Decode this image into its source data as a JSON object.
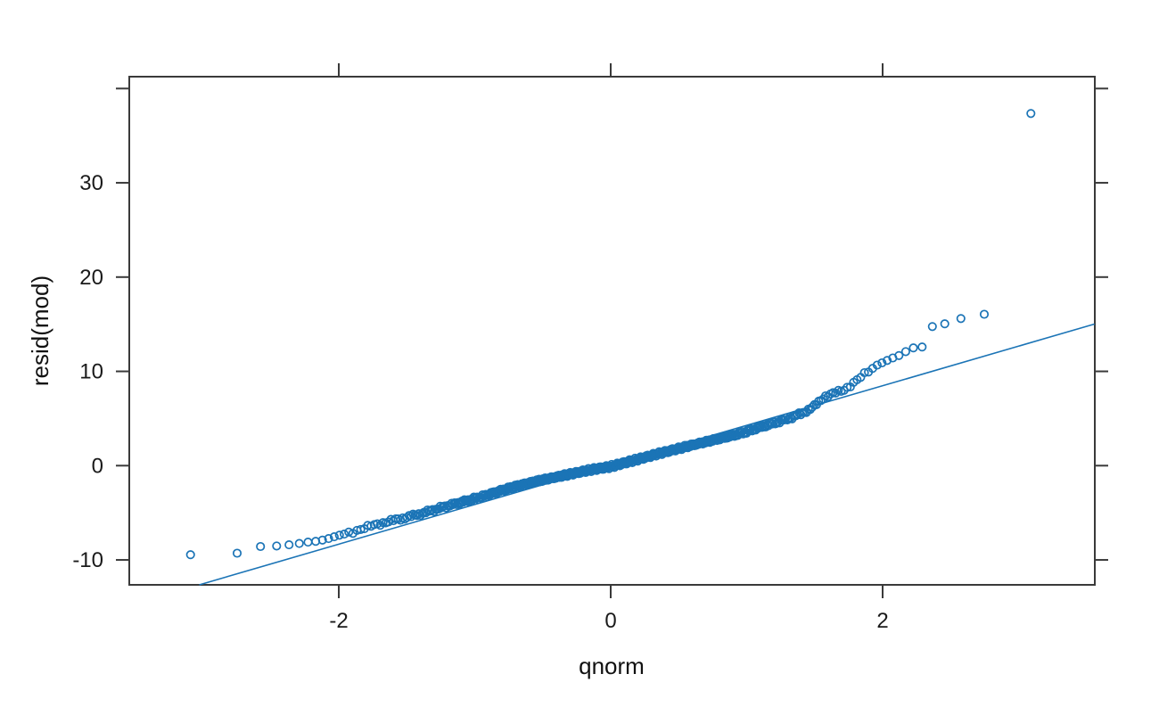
{
  "chart_data": {
    "type": "scatter",
    "title": "",
    "xlabel": "qnorm",
    "ylabel": "resid(mod)",
    "x_ticks": {
      "values": [
        -2,
        0,
        2
      ],
      "labels": [
        "-2",
        "0",
        "2"
      ]
    },
    "y_ticks": {
      "values": [
        40,
        30,
        20,
        10,
        0,
        -10
      ],
      "labels": [
        "",
        "30",
        "20",
        "10",
        "0",
        "-10"
      ]
    },
    "xlim": [
      -3.54,
      3.56
    ],
    "ylim": [
      -12.64,
      41.25
    ],
    "grid": false,
    "legend": null,
    "marker": "open-circle",
    "point_color": "#1b74b6",
    "line_color": "#1b74b6",
    "axis_color": "#3a3a3a",
    "text_color": "#1a1a1a",
    "n_points": 500,
    "sampling": "theoretical quantiles x[i] = qnorm((i-0.5)/500), i = 1..500",
    "reference_line": {
      "x1": -3.026,
      "y1": -12.64,
      "x2": 3.558,
      "y2": 15.02,
      "equation": "y = 4.2x + 0.07"
    },
    "quantile_curve": [
      [
        -3.09,
        -9.45
      ],
      [
        -2.75,
        -9.3
      ],
      [
        -2.6,
        -8.58
      ],
      [
        -2.49,
        -8.55
      ],
      [
        -2.41,
        -8.48
      ],
      [
        -2.31,
        -8.3
      ],
      [
        -2.22,
        -8.1
      ],
      [
        -2.15,
        -8.0
      ],
      [
        -2.09,
        -7.8
      ],
      [
        -2.0,
        -7.4
      ],
      [
        -1.93,
        -7.1
      ],
      [
        -1.87,
        -6.9
      ],
      [
        -1.8,
        -6.6
      ],
      [
        -1.74,
        -6.3
      ],
      [
        -1.67,
        -6.05
      ],
      [
        -1.55,
        -5.65
      ],
      [
        -1.45,
        -5.3
      ],
      [
        -1.35,
        -4.9
      ],
      [
        -1.21,
        -4.3
      ],
      [
        -1.08,
        -3.8
      ],
      [
        -0.95,
        -3.3
      ],
      [
        -0.82,
        -2.7
      ],
      [
        -0.7,
        -2.2
      ],
      [
        -0.56,
        -1.7
      ],
      [
        -0.43,
        -1.3
      ],
      [
        -0.3,
        -0.9
      ],
      [
        -0.15,
        -0.45
      ],
      [
        0.0,
        -0.1
      ],
      [
        0.18,
        0.6
      ],
      [
        0.36,
        1.3
      ],
      [
        0.55,
        2.0
      ],
      [
        0.75,
        2.7
      ],
      [
        0.9,
        3.2
      ],
      [
        1.0,
        3.6
      ],
      [
        1.08,
        4.0
      ],
      [
        1.2,
        4.5
      ],
      [
        1.3,
        4.95
      ],
      [
        1.4,
        5.5
      ],
      [
        1.49,
        6.2
      ],
      [
        1.57,
        7.3
      ],
      [
        1.65,
        7.7
      ],
      [
        1.72,
        8.1
      ],
      [
        1.79,
        8.8
      ],
      [
        1.85,
        9.5
      ],
      [
        1.95,
        10.6
      ],
      [
        2.07,
        11.4
      ],
      [
        2.15,
        11.85
      ],
      [
        2.2,
        12.45
      ],
      [
        2.3,
        12.6
      ],
      [
        2.37,
        14.9
      ],
      [
        2.49,
        15.1
      ],
      [
        2.61,
        15.8
      ],
      [
        2.77,
        16.1
      ],
      [
        3.1,
        38.0
      ]
    ],
    "notable_points": [
      [
        -3.1,
        -9.45
      ],
      [
        -2.77,
        -9.3
      ],
      [
        -2.61,
        -8.58
      ],
      [
        -2.5,
        -8.5
      ],
      [
        2.2,
        12.45
      ],
      [
        2.26,
        12.5
      ],
      [
        2.34,
        12.55
      ],
      [
        2.38,
        14.9
      ],
      [
        2.49,
        15.1
      ],
      [
        2.61,
        15.8
      ],
      [
        2.77,
        16.1
      ],
      [
        3.1,
        38.0
      ]
    ]
  }
}
